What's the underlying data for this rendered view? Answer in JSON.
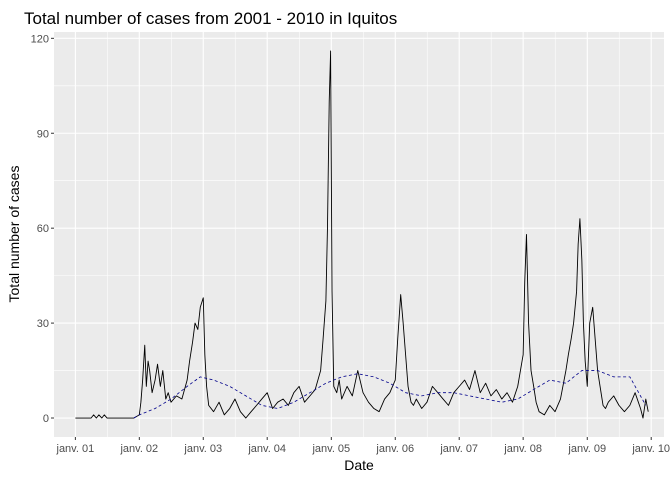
{
  "chart_data": {
    "type": "line",
    "title": "Total number of cases from 2001 - 2010 in Iquitos",
    "xlabel": "Date",
    "ylabel": "Total number of cases",
    "xlim": [
      "2000-09-01",
      "2010-03-15"
    ],
    "ylim": [
      -6,
      122
    ],
    "yticks": [
      0,
      30,
      60,
      90,
      120
    ],
    "xticks": [
      {
        "date": "2001-01-01",
        "label": "janv. 01"
      },
      {
        "date": "2002-01-01",
        "label": "janv. 02"
      },
      {
        "date": "2003-01-01",
        "label": "janv. 03"
      },
      {
        "date": "2004-01-01",
        "label": "janv. 04"
      },
      {
        "date": "2005-01-01",
        "label": "janv. 05"
      },
      {
        "date": "2006-01-01",
        "label": "janv. 06"
      },
      {
        "date": "2007-01-01",
        "label": "janv. 07"
      },
      {
        "date": "2008-01-01",
        "label": "janv. 08"
      },
      {
        "date": "2009-01-01",
        "label": "janv. 09"
      },
      {
        "date": "2010-01-01",
        "label": "janv. 10"
      }
    ],
    "grid": true,
    "series": [
      {
        "style": "solid",
        "color": "#000000",
        "x": [
          "2001-01-01",
          "2001-03-01",
          "2001-04-01",
          "2001-04-15",
          "2001-05-01",
          "2001-05-15",
          "2001-06-01",
          "2001-06-15",
          "2001-07-01",
          "2001-09-01",
          "2001-12-01",
          "2002-01-01",
          "2002-01-10",
          "2002-01-20",
          "2002-02-01",
          "2002-02-10",
          "2002-02-20",
          "2002-03-01",
          "2002-03-15",
          "2002-04-01",
          "2002-04-15",
          "2002-05-01",
          "2002-05-15",
          "2002-06-01",
          "2002-06-15",
          "2002-07-01",
          "2002-08-01",
          "2002-09-01",
          "2002-10-01",
          "2002-10-15",
          "2002-11-01",
          "2002-11-15",
          "2002-12-01",
          "2002-12-15",
          "2003-01-01",
          "2003-01-10",
          "2003-01-20",
          "2003-02-01",
          "2003-03-01",
          "2003-04-01",
          "2003-05-01",
          "2003-06-01",
          "2003-07-01",
          "2003-08-01",
          "2003-09-01",
          "2003-10-01",
          "2003-11-01",
          "2003-12-01",
          "2004-01-01",
          "2004-02-01",
          "2004-03-01",
          "2004-04-01",
          "2004-05-01",
          "2004-06-01",
          "2004-07-01",
          "2004-08-01",
          "2004-09-01",
          "2004-10-01",
          "2004-11-01",
          "2004-11-15",
          "2004-12-01",
          "2004-12-10",
          "2004-12-20",
          "2004-12-28",
          "2005-01-05",
          "2005-01-15",
          "2005-02-01",
          "2005-02-15",
          "2005-03-01",
          "2005-04-01",
          "2005-05-01",
          "2005-06-01",
          "2005-07-01",
          "2005-08-01",
          "2005-09-01",
          "2005-10-01",
          "2005-11-01",
          "2005-12-01",
          "2006-01-01",
          "2006-01-15",
          "2006-02-01",
          "2006-02-15",
          "2006-03-01",
          "2006-03-15",
          "2006-04-01",
          "2006-04-15",
          "2006-05-01",
          "2006-06-01",
          "2006-07-01",
          "2006-08-01",
          "2006-09-01",
          "2006-10-01",
          "2006-11-01",
          "2006-12-01",
          "2007-01-01",
          "2007-02-01",
          "2007-03-01",
          "2007-04-01",
          "2007-05-01",
          "2007-06-01",
          "2007-07-01",
          "2007-08-01",
          "2007-09-01",
          "2007-10-01",
          "2007-11-01",
          "2007-12-01",
          "2008-01-01",
          "2008-01-10",
          "2008-01-20",
          "2008-02-01",
          "2008-02-15",
          "2008-03-01",
          "2008-03-15",
          "2008-04-01",
          "2008-05-01",
          "2008-06-01",
          "2008-07-01",
          "2008-08-01",
          "2008-09-01",
          "2008-09-15",
          "2008-10-01",
          "2008-10-15",
          "2008-11-01",
          "2008-11-10",
          "2008-11-20",
          "2008-12-01",
          "2008-12-10",
          "2008-12-20",
          "2009-01-01",
          "2009-01-15",
          "2009-02-01",
          "2009-02-15",
          "2009-03-01",
          "2009-03-15",
          "2009-04-01",
          "2009-04-15",
          "2009-05-01",
          "2009-06-01",
          "2009-07-01",
          "2009-08-01",
          "2009-09-01",
          "2009-10-01",
          "2009-11-01",
          "2009-11-15",
          "2009-12-01",
          "2009-12-15"
        ],
        "y": [
          0,
          0,
          0,
          1,
          0,
          1,
          0,
          1,
          0,
          0,
          0,
          1,
          5,
          12,
          23,
          10,
          18,
          15,
          8,
          12,
          17,
          10,
          15,
          6,
          8,
          5,
          7,
          6,
          12,
          18,
          24,
          30,
          28,
          35,
          38,
          20,
          10,
          4,
          2,
          5,
          1,
          3,
          6,
          2,
          0,
          2,
          4,
          6,
          8,
          3,
          5,
          6,
          4,
          8,
          10,
          5,
          7,
          9,
          15,
          25,
          37,
          60,
          100,
          116,
          40,
          10,
          8,
          12,
          6,
          10,
          7,
          15,
          8,
          5,
          3,
          2,
          6,
          8,
          12,
          25,
          39,
          30,
          20,
          10,
          5,
          4,
          6,
          3,
          5,
          10,
          8,
          6,
          4,
          8,
          10,
          12,
          9,
          15,
          8,
          11,
          7,
          9,
          6,
          8,
          5,
          10,
          20,
          43,
          58,
          30,
          15,
          10,
          5,
          2,
          1,
          4,
          2,
          6,
          15,
          20,
          25,
          30,
          40,
          55,
          63,
          50,
          30,
          18,
          10,
          30,
          35,
          25,
          15,
          10,
          4,
          3,
          5,
          7,
          4,
          2,
          4,
          8,
          3,
          0,
          6,
          2
        ]
      },
      {
        "style": "dashed",
        "color": "#00008b",
        "x": [
          "2001-12-01",
          "2002-01-01",
          "2002-04-01",
          "2002-07-01",
          "2002-10-01",
          "2002-12-15",
          "2003-03-01",
          "2003-06-01",
          "2003-09-01",
          "2003-12-01",
          "2004-03-01",
          "2004-06-01",
          "2004-09-01",
          "2004-12-01",
          "2005-03-01",
          "2005-06-01",
          "2005-09-01",
          "2005-12-01",
          "2006-03-01",
          "2006-06-01",
          "2006-09-01",
          "2006-12-01",
          "2007-03-01",
          "2007-06-01",
          "2007-09-01",
          "2007-12-01",
          "2008-03-01",
          "2008-06-01",
          "2008-09-01",
          "2008-12-01",
          "2009-03-01",
          "2009-06-01",
          "2009-09-01",
          "2009-12-01"
        ],
        "y": [
          0,
          1,
          3,
          6,
          10,
          13,
          12,
          10,
          7,
          4,
          3,
          5,
          8,
          11,
          13,
          14,
          13,
          11,
          8,
          7,
          8,
          8,
          7,
          6,
          5,
          6,
          9,
          12,
          11,
          15,
          15,
          13,
          13,
          4
        ]
      }
    ]
  }
}
